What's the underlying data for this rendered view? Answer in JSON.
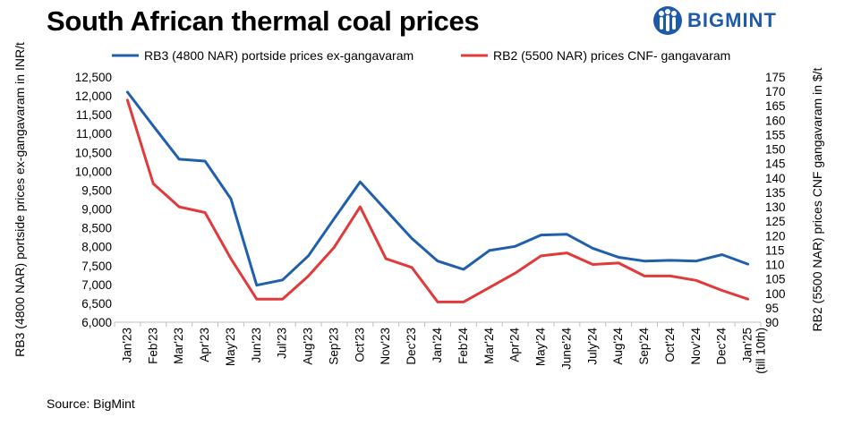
{
  "header": {
    "title": "South African thermal coal prices",
    "brand": "BIGMINT"
  },
  "footer": {
    "source": "Source: BigMint"
  },
  "colors": {
    "rb3": "#1f5fac",
    "rb2": "#e03a3a",
    "brand": "#1e5aa8"
  },
  "icons": {
    "logo": "bigmint-people-logo-icon"
  },
  "chart_data": {
    "type": "line",
    "title": "South African thermal coal prices",
    "categories": [
      "Jan'23",
      "Feb'23",
      "Mar'23",
      "Apr'23",
      "May'23",
      "Jun'23",
      "Jul'23",
      "Aug'23",
      "Sep'23",
      "Oct'23",
      "Nov'23",
      "Dec'23",
      "Jan'24",
      "Feb'24",
      "Mar'24",
      "Apr'24",
      "May'24",
      "June'24",
      "July'24",
      "Aug'24",
      "Sep'24",
      "Oct'24",
      "Nov'24",
      "Dec'24",
      "Jan'25 (till 10th)"
    ],
    "series": [
      {
        "name": "RB3 (4800 NAR) portside prices ex-gangavaram",
        "axis": "left",
        "values": [
          12100,
          11200,
          10320,
          10270,
          9270,
          6980,
          7120,
          7760,
          8750,
          9720,
          8970,
          8220,
          7620,
          7400,
          7900,
          8010,
          8310,
          8330,
          7960,
          7720,
          7620,
          7640,
          7620,
          7790,
          7540
        ]
      },
      {
        "name": "RB2 (5500 NAR) prices CNF- gangavaram",
        "axis": "right",
        "values": [
          167,
          138,
          130,
          128,
          112,
          98,
          98,
          106,
          116,
          130,
          112,
          109,
          97,
          97,
          102,
          107,
          113,
          114,
          110,
          110.5,
          106,
          106,
          104.5,
          101,
          98
        ]
      }
    ],
    "ylabel": "RB3 (4800 NAR) portside prices ex-gangavaram in INR/t",
    "ylabel_right": "RB2 (5500 NAR) prices CNF gangavaram in $/t",
    "ylim": [
      6000,
      12500
    ],
    "ylim_right": [
      90,
      175
    ],
    "yticks": [
      "6,000",
      "6,500",
      "7,000",
      "7,500",
      "8,000",
      "8,500",
      "9,000",
      "9,500",
      "10,000",
      "10,500",
      "11,000",
      "11,500",
      "12,000",
      "12,500"
    ],
    "yticks_right": [
      "90",
      "95",
      "100",
      "105",
      "110",
      "115",
      "120",
      "125",
      "130",
      "135",
      "140",
      "145",
      "150",
      "155",
      "160",
      "165",
      "170",
      "175"
    ],
    "legend": "top"
  }
}
